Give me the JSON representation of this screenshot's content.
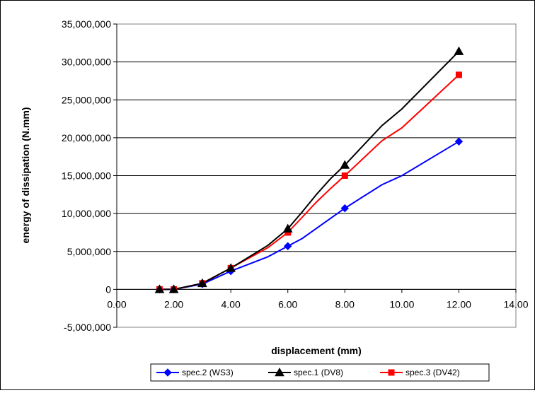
{
  "chart_data": {
    "type": "line",
    "title": "",
    "xlabel": "displacement (mm)",
    "ylabel": "energy of dissipation (N.mm)",
    "xlim": [
      0,
      14
    ],
    "ylim": [
      -5000000,
      35000000
    ],
    "x_ticks": [
      "0.00",
      "2.00",
      "4.00",
      "6.00",
      "8.00",
      "10.00",
      "12.00",
      "14.00"
    ],
    "y_ticks": [
      "35,000,000",
      "30,000,000",
      "25,000,000",
      "20,000,000",
      "15,000,000",
      "10,000,000",
      "5,000,000",
      "0",
      "-5,000,000"
    ],
    "grid": "horizontal major gridlines",
    "legend_position": "bottom",
    "series": [
      {
        "name": "spec.2 (WS3)",
        "color": "#0000ff",
        "marker": "diamond",
        "x": [
          1.5,
          2.0,
          3.0,
          4.0,
          5.3,
          6.0,
          6.5,
          8.0,
          9.3,
          10.0,
          12.0
        ],
        "y": [
          0,
          0,
          700000,
          2400000,
          4300000,
          5700000,
          6700000,
          10700000,
          13800000,
          15000000,
          19500000
        ]
      },
      {
        "name": "spec.1 (DV8)",
        "color": "#000000",
        "marker": "triangle",
        "x": [
          1.5,
          2.0,
          3.0,
          4.0,
          5.3,
          6.0,
          6.5,
          7.0,
          7.5,
          8.0,
          9.3,
          10.0,
          12.0
        ],
        "y": [
          0,
          0,
          800000,
          2800000,
          5800000,
          8000000,
          10200000,
          12500000,
          14600000,
          16400000,
          21600000,
          23800000,
          31400000
        ]
      },
      {
        "name": "spec.3 (DV42)",
        "color": "#ff0000",
        "marker": "square",
        "x": [
          1.5,
          2.0,
          3.0,
          4.0,
          5.3,
          6.0,
          6.5,
          7.0,
          7.5,
          8.0,
          9.3,
          10.0,
          12.0
        ],
        "y": [
          0,
          0,
          800000,
          2800000,
          5500000,
          7500000,
          9500000,
          11500000,
          13300000,
          15000000,
          19600000,
          21300000,
          28300000
        ]
      }
    ],
    "marked_x": [
      1.5,
      2.0,
      3.0,
      4.0,
      6.0,
      8.0,
      12.0
    ]
  }
}
